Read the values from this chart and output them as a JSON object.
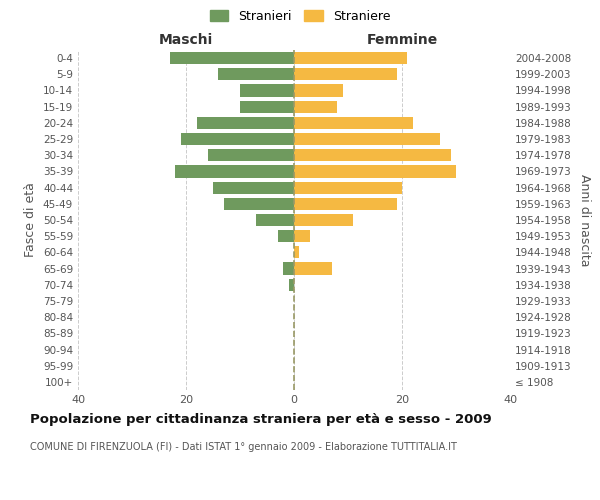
{
  "age_groups": [
    "100+",
    "95-99",
    "90-94",
    "85-89",
    "80-84",
    "75-79",
    "70-74",
    "65-69",
    "60-64",
    "55-59",
    "50-54",
    "45-49",
    "40-44",
    "35-39",
    "30-34",
    "25-29",
    "20-24",
    "15-19",
    "10-14",
    "5-9",
    "0-4"
  ],
  "birth_years": [
    "≤ 1908",
    "1909-1913",
    "1914-1918",
    "1919-1923",
    "1924-1928",
    "1929-1933",
    "1934-1938",
    "1939-1943",
    "1944-1948",
    "1949-1953",
    "1954-1958",
    "1959-1963",
    "1964-1968",
    "1969-1973",
    "1974-1978",
    "1979-1983",
    "1984-1988",
    "1989-1993",
    "1994-1998",
    "1999-2003",
    "2004-2008"
  ],
  "maschi": [
    0,
    0,
    0,
    0,
    0,
    0,
    1,
    2,
    0,
    3,
    7,
    13,
    15,
    22,
    16,
    21,
    18,
    10,
    10,
    14,
    23
  ],
  "femmine": [
    0,
    0,
    0,
    0,
    0,
    0,
    0,
    7,
    1,
    3,
    11,
    19,
    20,
    30,
    29,
    27,
    22,
    8,
    9,
    19,
    21
  ],
  "color_maschi": "#6f9a5e",
  "color_femmine": "#f5b942",
  "title": "Popolazione per cittadinanza straniera per età e sesso - 2009",
  "subtitle": "COMUNE DI FIRENZUOLA (FI) - Dati ISTAT 1° gennaio 2009 - Elaborazione TUTTITALIA.IT",
  "xlabel_left": "Maschi",
  "xlabel_right": "Femmine",
  "ylabel_left": "Fasce di età",
  "ylabel_right": "Anni di nascita",
  "legend_maschi": "Stranieri",
  "legend_femmine": "Straniere",
  "xlim": 40,
  "background_color": "#ffffff",
  "grid_color": "#cccccc"
}
